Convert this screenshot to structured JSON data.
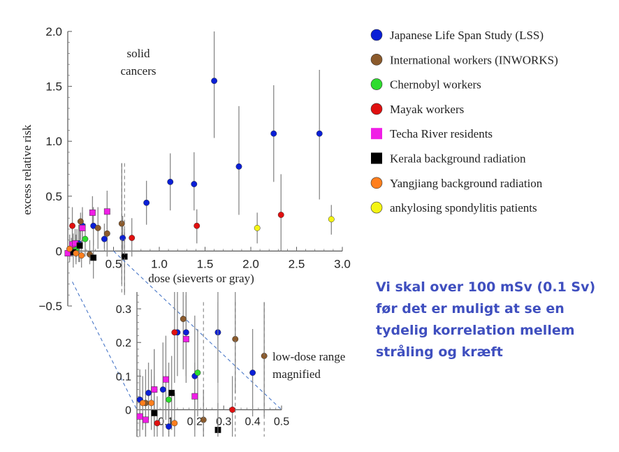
{
  "note": {
    "lines": [
      "Vi skal over 100 mSv (0.1 Sv)",
      "før det er muligt at se en",
      "tydelig korrelation mellem",
      "stråling og kræft"
    ],
    "color": "#3f4fbf"
  },
  "chart_data": [
    {
      "type": "scatter",
      "title": "",
      "xlabel": "dose (sieverts or gray)",
      "ylabel": "excess relative risk",
      "xlim": [
        0,
        3.0
      ],
      "ylim": [
        -0.5,
        2.0
      ],
      "xticks": [
        "0.5",
        "1.0",
        "1.5",
        "2.0",
        "2.5",
        "3.0"
      ],
      "yticks": [
        "−0.5",
        "0",
        "0.5",
        "1.0",
        "1.5",
        "2.0"
      ],
      "annotations": [
        "solid",
        "cancers"
      ],
      "legend_position": "right",
      "error_bars": true,
      "series": [
        {
          "name": "Japanese Life Span Study (LSS)",
          "color": "#0a1fd6",
          "marker": "circle",
          "points": [
            {
              "x": 0.02,
              "y": 0.02,
              "lo": -0.05,
              "hi": 0.15
            },
            {
              "x": 0.06,
              "y": 0.05,
              "lo": -0.02,
              "hi": 0.16
            },
            {
              "x": 0.12,
              "y": 0.07,
              "lo": -0.1,
              "hi": 0.24
            },
            {
              "x": 0.16,
              "y": 0.23,
              "lo": 0.02,
              "hi": 0.4
            },
            {
              "x": 0.28,
              "y": 0.23,
              "lo": 0.05,
              "hi": 0.4
            },
            {
              "x": 0.4,
              "y": 0.11,
              "lo": 0.02,
              "hi": 0.25
            },
            {
              "x": 0.6,
              "y": 0.12,
              "lo": -0.05,
              "hi": 0.32
            },
            {
              "x": 0.86,
              "y": 0.44,
              "lo": 0.24,
              "hi": 0.64
            },
            {
              "x": 1.12,
              "y": 0.63,
              "lo": 0.37,
              "hi": 0.89
            },
            {
              "x": 1.38,
              "y": 0.61,
              "lo": 0.37,
              "hi": 0.9
            },
            {
              "x": 1.6,
              "y": 1.55,
              "lo": 1.03,
              "hi": 2.0
            },
            {
              "x": 1.87,
              "y": 0.77,
              "lo": 0.33,
              "hi": 1.32
            },
            {
              "x": 2.25,
              "y": 1.07,
              "lo": 0.63,
              "hi": 1.51
            },
            {
              "x": 2.75,
              "y": 1.07,
              "lo": 0.47,
              "hi": 1.65
            }
          ]
        },
        {
          "name": "International workers (INWORKS)",
          "color": "#8b5a2b",
          "marker": "circle",
          "points": [
            {
              "x": 0.02,
              "y": 0.0,
              "lo": -0.08,
              "hi": 0.1
            },
            {
              "x": 0.04,
              "y": 0.02,
              "lo": -0.05,
              "hi": 0.12
            },
            {
              "x": 0.1,
              "y": 0.06,
              "lo": -0.05,
              "hi": 0.2
            },
            {
              "x": 0.14,
              "y": 0.27,
              "lo": 0.1,
              "hi": 0.35
            },
            {
              "x": 0.24,
              "y": -0.03,
              "lo": -0.12,
              "hi": 0.1
            },
            {
              "x": 0.33,
              "y": 0.21,
              "lo": 0.02,
              "hi": 0.4
            },
            {
              "x": 0.43,
              "y": 0.16,
              "lo": -0.05,
              "hi": 0.37
            },
            {
              "x": 0.59,
              "y": 0.25,
              "lo": -0.3,
              "hi": 0.8
            }
          ]
        },
        {
          "name": "Chernobyl workers",
          "color": "#2edc2e",
          "marker": "circle",
          "points": [
            {
              "x": 0.09,
              "y": 0.02,
              "lo": -0.1,
              "hi": 0.15
            },
            {
              "x": 0.19,
              "y": 0.11,
              "lo": -0.05,
              "hi": 0.25
            }
          ]
        },
        {
          "name": "Mayak workers",
          "color": "#e01010",
          "marker": "circle",
          "points": [
            {
              "x": 0.05,
              "y": 0.23,
              "lo": 0.05,
              "hi": 0.4
            },
            {
              "x": 0.7,
              "y": 0.12,
              "lo": -0.05,
              "hi": 0.3
            },
            {
              "x": 1.41,
              "y": 0.23,
              "lo": 0.07,
              "hi": 0.38
            },
            {
              "x": 2.33,
              "y": 0.33,
              "lo": 0.0,
              "hi": 0.7
            }
          ]
        },
        {
          "name": "Techa River residents",
          "color": "#f01ee6",
          "marker": "square",
          "points": [
            {
              "x": 0.0,
              "y": -0.02,
              "lo": -0.1,
              "hi": 0.1
            },
            {
              "x": 0.05,
              "y": 0.06,
              "lo": -0.05,
              "hi": 0.2
            },
            {
              "x": 0.08,
              "y": 0.07,
              "lo": -0.05,
              "hi": 0.2
            },
            {
              "x": 0.16,
              "y": 0.21,
              "lo": 0.05,
              "hi": 0.35
            },
            {
              "x": 0.27,
              "y": 0.35,
              "lo": 0.2,
              "hi": 0.5
            },
            {
              "x": 0.43,
              "y": 0.36,
              "lo": 0.2,
              "hi": 0.55
            }
          ]
        },
        {
          "name": "Kerala background radiation",
          "color": "#000000",
          "marker": "square",
          "points": [
            {
              "x": 0.06,
              "y": -0.01,
              "lo": -0.15,
              "hi": 0.15
            },
            {
              "x": 0.13,
              "y": 0.05,
              "lo": -0.1,
              "hi": 0.2
            },
            {
              "x": 0.28,
              "y": -0.06,
              "lo": -0.25,
              "hi": 0.1
            },
            {
              "x": 0.62,
              "y": -0.05,
              "lo": -0.4,
              "hi": 0.2
            }
          ]
        },
        {
          "name": "Yangjiang background radiation",
          "color": "#ff7f1e",
          "marker": "circle",
          "points": [
            {
              "x": 0.02,
              "y": 0.02,
              "lo": -0.1,
              "hi": 0.15
            },
            {
              "x": 0.09,
              "y": -0.02,
              "lo": -0.12,
              "hi": 0.1
            },
            {
              "x": 0.15,
              "y": -0.04,
              "lo": -0.15,
              "hi": 0.1
            }
          ]
        },
        {
          "name": "ankylosing spondylitis patients",
          "color": "#f5f514",
          "marker": "circle",
          "points": [
            {
              "x": 2.07,
              "y": 0.21,
              "lo": 0.07,
              "hi": 0.35
            },
            {
              "x": 2.88,
              "y": 0.29,
              "lo": 0.15,
              "hi": 0.42
            }
          ]
        }
      ]
    },
    {
      "type": "scatter",
      "title": "",
      "xlim": [
        0,
        0.5
      ],
      "ylim": [
        -0.08,
        0.35
      ],
      "xticks": [
        "0.1",
        "0.2",
        "0.3",
        "0.4",
        "0.5"
      ],
      "yticks": [
        "0",
        "0.1",
        "0.2",
        "0.3"
      ],
      "annotations": [
        "low-dose range",
        "magnified"
      ],
      "error_bars": true,
      "series": [
        {
          "color": "#0a1fd6",
          "marker": "circle",
          "points": [
            {
              "x": 0.01,
              "y": 0.03,
              "lo": -0.05,
              "hi": 0.12
            },
            {
              "x": 0.04,
              "y": 0.05,
              "lo": -0.03,
              "hi": 0.14
            },
            {
              "x": 0.09,
              "y": 0.06,
              "lo": -0.08,
              "hi": 0.2
            },
            {
              "x": 0.11,
              "y": -0.05,
              "lo": -0.08,
              "hi": 0.04
            },
            {
              "x": 0.14,
              "y": 0.23,
              "lo": 0.1,
              "hi": 0.35
            },
            {
              "x": 0.17,
              "y": 0.23,
              "lo": 0.1,
              "hi": 0.35
            },
            {
              "x": 0.2,
              "y": 0.1,
              "lo": -0.08,
              "hi": 0.28
            },
            {
              "x": 0.28,
              "y": 0.23,
              "lo": 0.08,
              "hi": 0.35
            },
            {
              "x": 0.4,
              "y": 0.11,
              "lo": -0.02,
              "hi": 0.24
            }
          ]
        },
        {
          "color": "#8b5a2b",
          "marker": "circle",
          "points": [
            {
              "x": 0.03,
              "y": 0.02,
              "lo": -0.08,
              "hi": 0.12
            },
            {
              "x": 0.06,
              "y": 0.06,
              "lo": -0.06,
              "hi": 0.18
            },
            {
              "x": 0.16,
              "y": 0.27,
              "lo": 0.12,
              "hi": 0.35
            },
            {
              "x": 0.23,
              "y": -0.03,
              "lo": -0.08,
              "hi": 0.06
            },
            {
              "x": 0.34,
              "y": 0.21,
              "lo": 0.05,
              "hi": 0.35
            },
            {
              "x": 0.44,
              "y": 0.16,
              "lo": -0.02,
              "hi": 0.32
            }
          ]
        },
        {
          "color": "#2edc2e",
          "marker": "circle",
          "points": [
            {
              "x": 0.11,
              "y": 0.03,
              "lo": -0.08,
              "hi": 0.14
            },
            {
              "x": 0.21,
              "y": 0.11,
              "lo": -0.02,
              "hi": 0.24
            }
          ]
        },
        {
          "color": "#e01010",
          "marker": "circle",
          "points": [
            {
              "x": 0.07,
              "y": -0.04,
              "lo": -0.08,
              "hi": 0.04
            },
            {
              "x": 0.13,
              "y": 0.23,
              "lo": 0.08,
              "hi": 0.35
            },
            {
              "x": 0.33,
              "y": 0.0,
              "lo": -0.08,
              "hi": 0.1
            }
          ]
        },
        {
          "color": "#f01ee6",
          "marker": "square",
          "points": [
            {
              "x": 0.01,
              "y": -0.02,
              "lo": -0.08,
              "hi": 0.06
            },
            {
              "x": 0.03,
              "y": -0.03,
              "lo": -0.08,
              "hi": 0.05
            },
            {
              "x": 0.06,
              "y": 0.06,
              "lo": -0.05,
              "hi": 0.18
            },
            {
              "x": 0.1,
              "y": 0.09,
              "lo": -0.03,
              "hi": 0.22
            },
            {
              "x": 0.17,
              "y": 0.21,
              "lo": 0.08,
              "hi": 0.34
            },
            {
              "x": 0.2,
              "y": 0.04,
              "lo": -0.06,
              "hi": 0.14
            }
          ]
        },
        {
          "color": "#000000",
          "marker": "square",
          "points": [
            {
              "x": 0.06,
              "y": -0.01,
              "lo": -0.08,
              "hi": 0.1
            },
            {
              "x": 0.12,
              "y": 0.05,
              "lo": -0.06,
              "hi": 0.16
            },
            {
              "x": 0.28,
              "y": -0.06,
              "lo": -0.08,
              "hi": 0.02
            }
          ]
        },
        {
          "color": "#ff7f1e",
          "marker": "circle",
          "points": [
            {
              "x": 0.02,
              "y": 0.02,
              "lo": -0.06,
              "hi": 0.1
            },
            {
              "x": 0.05,
              "y": 0.02,
              "lo": -0.06,
              "hi": 0.12
            },
            {
              "x": 0.13,
              "y": -0.04,
              "lo": -0.08,
              "hi": 0.05
            }
          ]
        }
      ]
    }
  ]
}
